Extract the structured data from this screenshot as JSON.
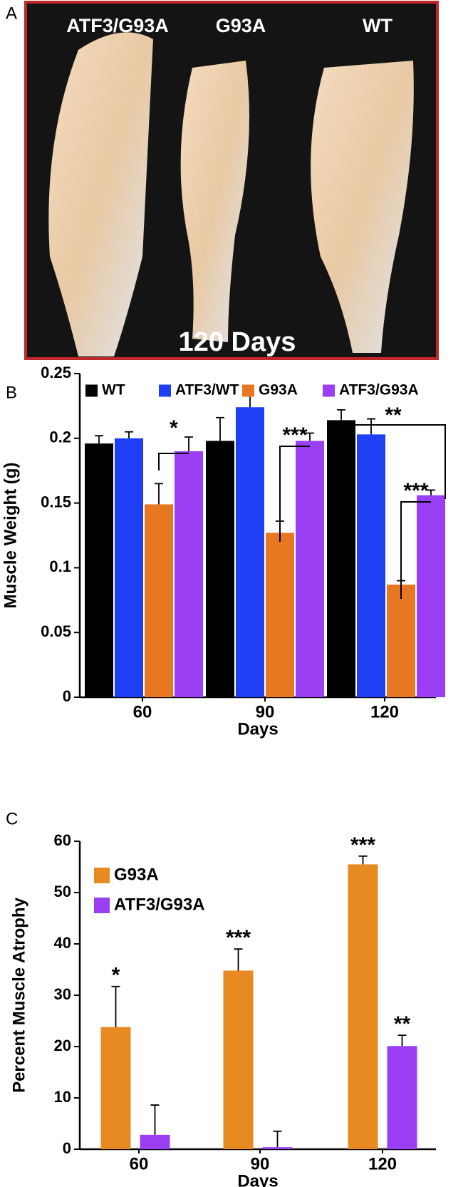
{
  "photo": {
    "panel_label": "A",
    "labels": [
      "ATF3/G93A",
      "G93A",
      "WT"
    ],
    "caption": "120 Days"
  },
  "chart_data": [
    {
      "type": "bar",
      "panel_label": "B",
      "ylabel": "Muscle Weight (g)",
      "xlabel": "Days",
      "categories": [
        "60",
        "90",
        "120"
      ],
      "ylim": [
        0,
        0.25
      ],
      "yticks": [
        0,
        0.05,
        0.1,
        0.15,
        0.2,
        0.25
      ],
      "series": [
        {
          "name": "WT",
          "color": "#000000",
          "values": [
            0.196,
            0.198,
            0.214
          ],
          "errors": [
            0.006,
            0.018,
            0.008
          ]
        },
        {
          "name": "ATF3/WT",
          "color": "#1f3ff5",
          "values": [
            0.2,
            0.224,
            0.203
          ],
          "errors": [
            0.005,
            0.009,
            0.012
          ]
        },
        {
          "name": "G93A",
          "color": "#e87722",
          "values": [
            0.149,
            0.127,
            0.087
          ],
          "errors": [
            0.016,
            0.009,
            0.003
          ]
        },
        {
          "name": "ATF3/G93A",
          "color": "#9b3ff5",
          "values": [
            0.19,
            0.198,
            0.156
          ],
          "errors": [
            0.011,
            0.006,
            0.004
          ]
        }
      ],
      "annotations": [
        "*",
        "***",
        "**",
        "***"
      ]
    },
    {
      "type": "bar",
      "panel_label": "C",
      "ylabel": "Percent Muscle Atrophy",
      "xlabel": "Days",
      "categories": [
        "60",
        "90",
        "120"
      ],
      "ylim": [
        0,
        60
      ],
      "yticks": [
        0,
        10,
        20,
        30,
        40,
        50,
        60
      ],
      "series": [
        {
          "name": "G93A",
          "color": "#e88a22",
          "values": [
            23.8,
            34.8,
            55.5
          ],
          "errors": [
            7.9,
            4.2,
            1.6
          ]
        },
        {
          "name": "ATF3/G93A",
          "color": "#9b3ff5",
          "values": [
            2.8,
            0.4,
            20.1
          ],
          "errors": [
            5.8,
            3.1,
            2.1
          ]
        }
      ],
      "annotations": [
        "*",
        "***",
        "***",
        "**"
      ]
    }
  ]
}
